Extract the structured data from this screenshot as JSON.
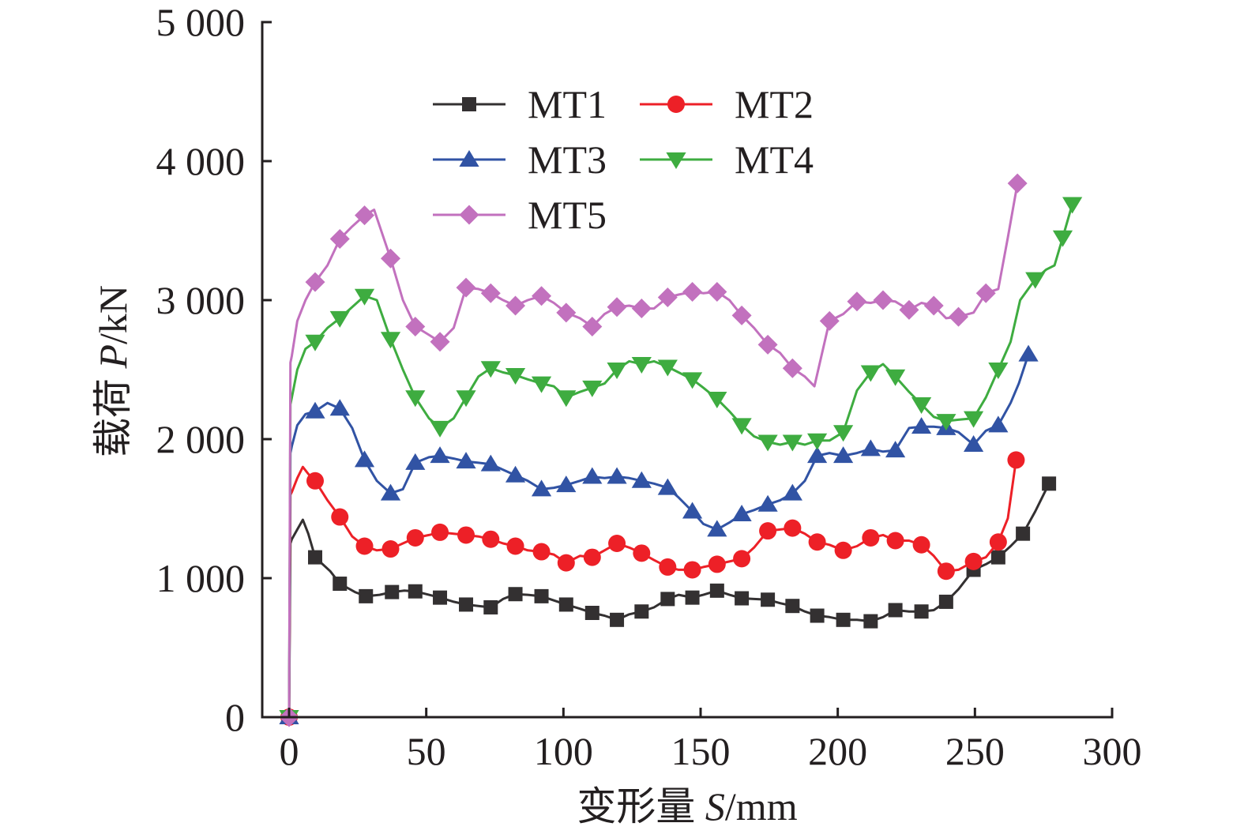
{
  "chart_data": {
    "type": "line",
    "title": "",
    "xlabel": "变形量 S/mm",
    "xlabel_parts": {
      "prefix": "变形量 ",
      "var": "S",
      "unit": "/mm"
    },
    "ylabel": "载荷 P/kN",
    "ylabel_parts": {
      "prefix": "载荷 ",
      "var": "P",
      "unit": "/kN"
    },
    "xlim": [
      0,
      300
    ],
    "ylim": [
      0,
      5000
    ],
    "xticks": [
      0,
      50,
      100,
      150,
      200,
      250,
      300
    ],
    "xtick_labels": [
      "0",
      "50",
      "100",
      "150",
      "200",
      "250",
      "300"
    ],
    "yticks": [
      0,
      1000,
      2000,
      3000,
      4000,
      5000
    ],
    "ytick_labels": [
      "0",
      "1 000",
      "2 000",
      "3 000",
      "4 000",
      "5 000"
    ],
    "grid": false,
    "legend_position": "top-center",
    "series": [
      {
        "name": "MT1",
        "color": "#333031",
        "marker": "square",
        "x": [
          0,
          0.5,
          1,
          3,
          5,
          7,
          9.5,
          15,
          18.5,
          24,
          28,
          33,
          37.5,
          42,
          46,
          51,
          55,
          60,
          64.5,
          69,
          73.5,
          78,
          82.5,
          87,
          92,
          96.5,
          101,
          106,
          110.5,
          115,
          119.5,
          124,
          128.5,
          133,
          138,
          142,
          147,
          151,
          156,
          160.5,
          165,
          169.5,
          174.5,
          179,
          183.5,
          188,
          192.5,
          197,
          202,
          207,
          212,
          216.5,
          221,
          226,
          230.5,
          235,
          239.5,
          244,
          249.5,
          254,
          258.5,
          263,
          267.5,
          272,
          277
        ],
        "y": [
          0,
          1250,
          1280,
          1350,
          1420,
          1320,
          1150,
          1050,
          960,
          900,
          870,
          880,
          900,
          910,
          905,
          880,
          860,
          830,
          810,
          800,
          790,
          850,
          885,
          880,
          870,
          840,
          810,
          780,
          750,
          730,
          700,
          740,
          760,
          790,
          850,
          880,
          860,
          880,
          910,
          880,
          855,
          850,
          845,
          820,
          800,
          760,
          730,
          720,
          700,
          700,
          690,
          720,
          770,
          760,
          760,
          770,
          830,
          920,
          1060,
          1100,
          1150,
          1230,
          1320,
          1480,
          1680
        ]
      },
      {
        "name": "MT2",
        "color": "#ed2027",
        "marker": "circle",
        "x": [
          0,
          0.5,
          1,
          3,
          5,
          7,
          9.5,
          14,
          18.5,
          23,
          27.5,
          32,
          37,
          41.5,
          46,
          51,
          55,
          60,
          64.5,
          69,
          73.5,
          78,
          82.5,
          87,
          92,
          96.5,
          101,
          106,
          110.5,
          115,
          119.5,
          124,
          128.5,
          133,
          138,
          142,
          147,
          151,
          156,
          160.5,
          165,
          169.5,
          174.5,
          179,
          183.5,
          188,
          192.5,
          197,
          202,
          207,
          212,
          216.5,
          221,
          226,
          230.5,
          235,
          239.5,
          244,
          249.5,
          254,
          258.5,
          262,
          265
        ],
        "y": [
          0,
          1600,
          1620,
          1720,
          1800,
          1750,
          1700,
          1560,
          1440,
          1300,
          1230,
          1200,
          1210,
          1250,
          1290,
          1310,
          1330,
          1320,
          1310,
          1300,
          1280,
          1250,
          1230,
          1200,
          1190,
          1170,
          1110,
          1160,
          1150,
          1200,
          1250,
          1220,
          1180,
          1130,
          1080,
          1060,
          1060,
          1080,
          1100,
          1120,
          1140,
          1220,
          1340,
          1350,
          1360,
          1320,
          1260,
          1240,
          1200,
          1230,
          1290,
          1310,
          1270,
          1270,
          1240,
          1160,
          1050,
          1060,
          1120,
          1150,
          1260,
          1430,
          1850
        ]
      },
      {
        "name": "MT3",
        "color": "#3153a4",
        "marker": "triangle-up",
        "x": [
          0,
          0.5,
          1,
          3,
          6,
          9.5,
          14,
          18.5,
          23,
          27.5,
          32,
          37,
          41.5,
          46,
          51,
          55,
          60,
          64.5,
          69,
          73.5,
          78,
          82.5,
          87,
          92,
          96.5,
          101,
          106,
          110.5,
          115,
          119.5,
          124,
          128.5,
          133,
          138,
          142,
          147,
          151,
          156,
          160.5,
          165,
          169.5,
          174.5,
          179,
          183.5,
          188,
          192.5,
          197,
          202,
          207,
          212,
          216.5,
          221,
          226,
          230.5,
          235,
          239.5,
          244,
          249.5,
          254,
          258.5,
          263,
          266,
          269.5
        ],
        "y": [
          0,
          1900,
          1950,
          2100,
          2180,
          2200,
          2260,
          2220,
          2080,
          1850,
          1700,
          1610,
          1640,
          1830,
          1870,
          1880,
          1860,
          1840,
          1830,
          1820,
          1780,
          1740,
          1700,
          1640,
          1650,
          1670,
          1700,
          1730,
          1720,
          1730,
          1720,
          1700,
          1680,
          1650,
          1580,
          1480,
          1390,
          1350,
          1400,
          1460,
          1490,
          1530,
          1560,
          1610,
          1700,
          1880,
          1900,
          1880,
          1900,
          1930,
          1910,
          1920,
          2080,
          2090,
          2090,
          2080,
          2050,
          1960,
          2060,
          2100,
          2260,
          2400,
          2610
        ]
      },
      {
        "name": "MT4",
        "color": "#3eac40",
        "marker": "triangle-down",
        "x": [
          0,
          0.5,
          1,
          3,
          6,
          9.5,
          14,
          18.5,
          23,
          27.5,
          32,
          37,
          41.5,
          46,
          51,
          55,
          60,
          64.5,
          69,
          73.5,
          78,
          82.5,
          87,
          92,
          96.5,
          101,
          106,
          110.5,
          115,
          119.5,
          124,
          128.5,
          133,
          138,
          142,
          147,
          151,
          156,
          160.5,
          165,
          169.5,
          174.5,
          179,
          183.5,
          188,
          192.5,
          197,
          202,
          207,
          212,
          216.5,
          221,
          226,
          230.5,
          235,
          239.5,
          244,
          249.5,
          254,
          258.5,
          263,
          266.5,
          272,
          276,
          279,
          282,
          285.5
        ],
        "y": [
          0,
          2250,
          2300,
          2500,
          2650,
          2700,
          2800,
          2870,
          2950,
          3030,
          3000,
          2720,
          2500,
          2300,
          2150,
          2080,
          2150,
          2300,
          2450,
          2510,
          2480,
          2460,
          2430,
          2400,
          2380,
          2300,
          2340,
          2370,
          2400,
          2500,
          2560,
          2540,
          2560,
          2520,
          2480,
          2430,
          2370,
          2290,
          2200,
          2100,
          2020,
          1980,
          1960,
          1980,
          1960,
          1990,
          1990,
          2050,
          2350,
          2480,
          2540,
          2450,
          2340,
          2250,
          2160,
          2130,
          2140,
          2150,
          2300,
          2500,
          2700,
          3000,
          3150,
          3220,
          3250,
          3450,
          3690
        ]
      },
      {
        "name": "MT5",
        "color": "#c271be",
        "marker": "diamond",
        "x": [
          0,
          0.5,
          1,
          3,
          6,
          9.5,
          14,
          18.5,
          23,
          27.5,
          31,
          37,
          41.5,
          46,
          51,
          55,
          60,
          64.5,
          69,
          73.5,
          78,
          82.5,
          87,
          92,
          96.5,
          101,
          106,
          110.5,
          115,
          119.5,
          124,
          128.5,
          133,
          138,
          142,
          147,
          151,
          156,
          160.5,
          165,
          169.5,
          174.5,
          179,
          183.5,
          188,
          191.5,
          197,
          202,
          207,
          212,
          216.5,
          221,
          226,
          230.5,
          235,
          239.5,
          244,
          249.5,
          254,
          258.5,
          262,
          265.5
        ],
        "y": [
          0,
          2550,
          2600,
          2850,
          3000,
          3130,
          3250,
          3440,
          3530,
          3610,
          3650,
          3300,
          3000,
          2810,
          2750,
          2700,
          2800,
          3090,
          3080,
          3050,
          3000,
          2960,
          3000,
          3030,
          2980,
          2910,
          2870,
          2810,
          2900,
          2950,
          2960,
          2940,
          2940,
          3020,
          3040,
          3060,
          3050,
          3060,
          3000,
          2890,
          2800,
          2680,
          2620,
          2510,
          2450,
          2380,
          2850,
          2900,
          2990,
          2980,
          3000,
          2990,
          2930,
          2980,
          2960,
          2870,
          2880,
          2910,
          3050,
          3080,
          3450,
          3840
        ]
      }
    ]
  }
}
